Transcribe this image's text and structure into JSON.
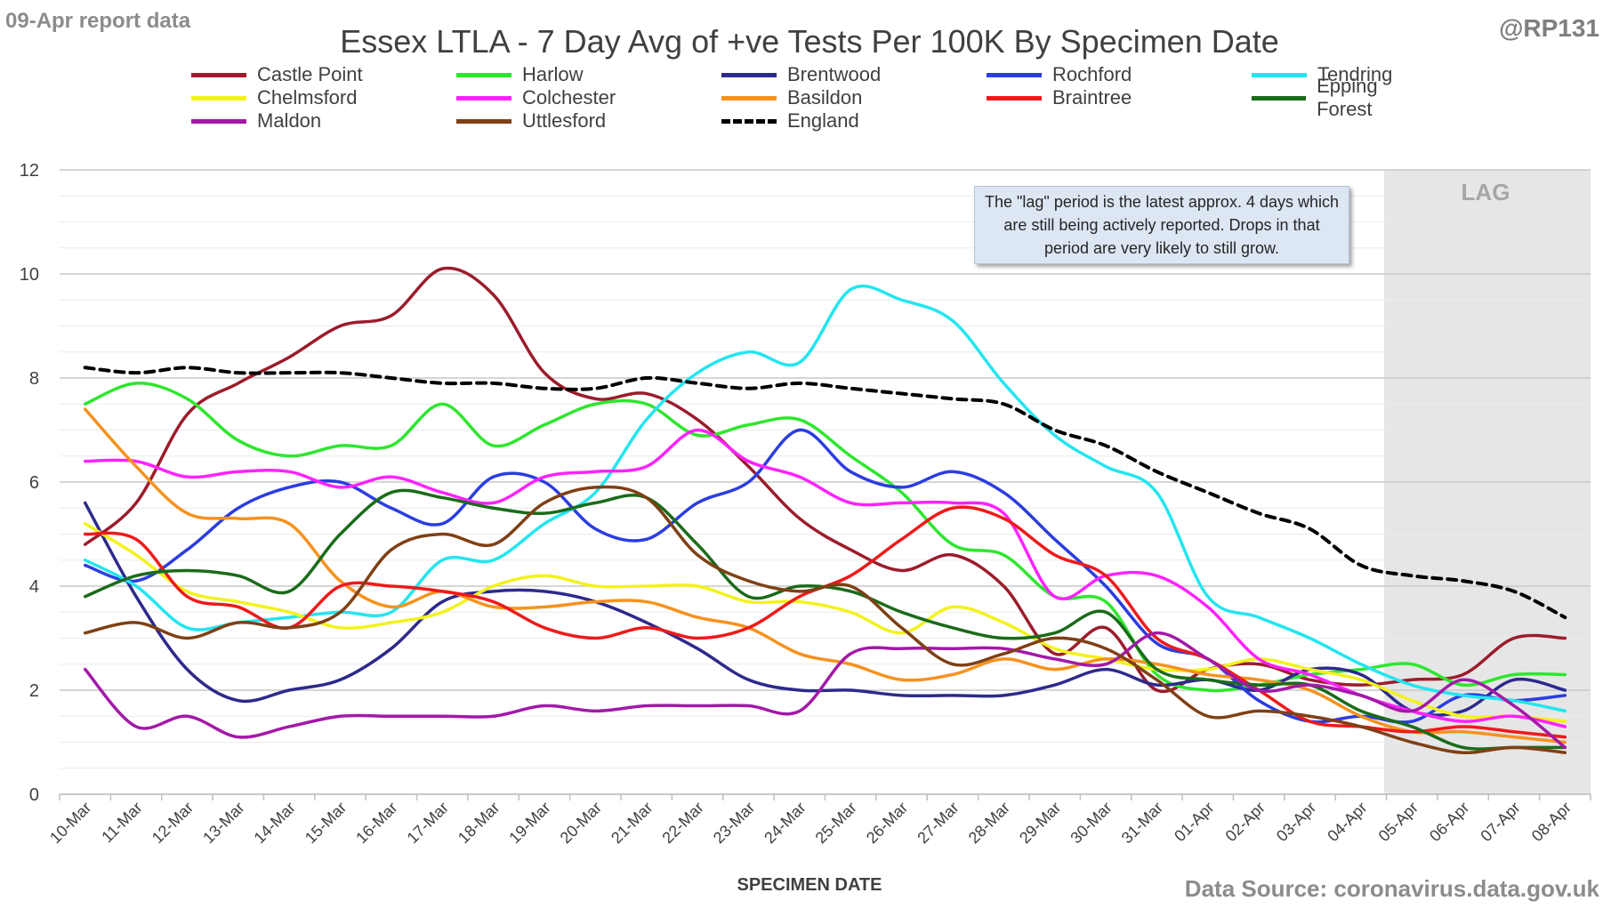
{
  "header": {
    "report_date": "09-Apr report data",
    "handle": "@RP131",
    "source": "Data Source: coronavirus.data.gov.uk"
  },
  "annotation": {
    "lag_label": "LAG",
    "lag_note": "The \"lag\" period is the latest approx. 4 days which are still being actively reported. Drops in that period are very likely to still grow."
  },
  "chart_data": {
    "type": "line",
    "title": "Essex LTLA - 7 Day Avg of +ve Tests Per 100K By Specimen Date",
    "xlabel": "SPECIMEN DATE",
    "ylabel": "",
    "ylim": [
      0,
      12
    ],
    "yticks": [
      0,
      2,
      4,
      6,
      8,
      10,
      12
    ],
    "grid": true,
    "legend_position": "top",
    "lag_region": [
      "05-Apr",
      "08-Apr"
    ],
    "categories": [
      "10-Mar",
      "11-Mar",
      "12-Mar",
      "13-Mar",
      "14-Mar",
      "15-Mar",
      "16-Mar",
      "17-Mar",
      "18-Mar",
      "19-Mar",
      "20-Mar",
      "21-Mar",
      "22-Mar",
      "23-Mar",
      "24-Mar",
      "25-Mar",
      "26-Mar",
      "27-Mar",
      "28-Mar",
      "29-Mar",
      "30-Mar",
      "31-Mar",
      "01-Apr",
      "02-Apr",
      "03-Apr",
      "04-Apr",
      "05-Apr",
      "06-Apr",
      "07-Apr",
      "08-Apr"
    ],
    "series": [
      {
        "name": "Castle Point",
        "color": "#9b1c2c",
        "dash": false,
        "values": [
          4.8,
          5.6,
          7.3,
          7.9,
          8.4,
          9.0,
          9.2,
          10.1,
          9.6,
          8.1,
          7.6,
          7.7,
          7.2,
          6.3,
          5.3,
          4.7,
          4.3,
          4.6,
          4.0,
          2.7,
          3.2,
          2.0,
          2.4,
          2.5,
          2.2,
          2.1,
          2.2,
          2.3,
          3.0,
          3.0
        ]
      },
      {
        "name": "Harlow",
        "color": "#2ee62e",
        "dash": false,
        "values": [
          7.5,
          7.9,
          7.6,
          6.8,
          6.5,
          6.7,
          6.7,
          7.5,
          6.7,
          7.1,
          7.5,
          7.5,
          6.9,
          7.1,
          7.2,
          6.5,
          5.8,
          4.8,
          4.6,
          3.8,
          3.7,
          2.3,
          2.0,
          2.1,
          2.3,
          2.4,
          2.5,
          2.1,
          2.3,
          2.3
        ]
      },
      {
        "name": "Brentwood",
        "color": "#2d2a8c",
        "dash": false,
        "values": [
          5.6,
          3.8,
          2.4,
          1.8,
          2.0,
          2.2,
          2.8,
          3.7,
          3.9,
          3.9,
          3.7,
          3.3,
          2.8,
          2.2,
          2.0,
          2.0,
          1.9,
          1.9,
          1.9,
          2.1,
          2.4,
          2.1,
          2.2,
          2.0,
          2.4,
          2.3,
          1.6,
          1.6,
          2.2,
          2.0
        ]
      },
      {
        "name": "Rochford",
        "color": "#2b3de0",
        "dash": false,
        "values": [
          4.4,
          4.1,
          4.7,
          5.5,
          5.9,
          6.0,
          5.5,
          5.2,
          6.1,
          6.0,
          5.1,
          4.9,
          5.6,
          6.0,
          7.0,
          6.2,
          5.9,
          6.2,
          5.8,
          4.9,
          4.0,
          2.9,
          2.6,
          1.8,
          1.4,
          1.5,
          1.4,
          1.9,
          1.8,
          1.9
        ]
      },
      {
        "name": "Tendring",
        "color": "#23e5f0",
        "dash": false,
        "values": [
          4.5,
          4.0,
          3.2,
          3.3,
          3.4,
          3.5,
          3.5,
          4.5,
          4.5,
          5.2,
          5.8,
          7.2,
          8.1,
          8.5,
          8.3,
          9.7,
          9.5,
          9.1,
          7.9,
          6.9,
          6.3,
          5.8,
          3.8,
          3.4,
          3.0,
          2.5,
          2.1,
          1.9,
          1.8,
          1.6
        ]
      },
      {
        "name": "Chelmsford",
        "color": "#f2f21b",
        "dash": false,
        "values": [
          5.2,
          4.6,
          3.9,
          3.7,
          3.5,
          3.2,
          3.3,
          3.5,
          4.0,
          4.2,
          4.0,
          4.0,
          4.0,
          3.7,
          3.7,
          3.5,
          3.1,
          3.6,
          3.3,
          2.8,
          2.6,
          2.4,
          2.4,
          2.6,
          2.4,
          2.2,
          1.8,
          1.5,
          1.5,
          1.4
        ]
      },
      {
        "name": "Colchester",
        "color": "#ff22ff",
        "dash": false,
        "values": [
          6.4,
          6.4,
          6.1,
          6.2,
          6.2,
          5.9,
          6.1,
          5.8,
          5.6,
          6.1,
          6.2,
          6.3,
          7.0,
          6.4,
          6.1,
          5.6,
          5.6,
          5.6,
          5.4,
          3.8,
          4.2,
          4.2,
          3.6,
          2.6,
          2.3,
          1.9,
          1.6,
          1.4,
          1.5,
          1.3
        ]
      },
      {
        "name": "Basildon",
        "color": "#f5921e",
        "dash": false,
        "values": [
          7.4,
          6.3,
          5.4,
          5.3,
          5.2,
          4.1,
          3.6,
          3.9,
          3.6,
          3.6,
          3.7,
          3.7,
          3.4,
          3.2,
          2.7,
          2.5,
          2.2,
          2.3,
          2.6,
          2.4,
          2.6,
          2.5,
          2.3,
          2.2,
          2.0,
          1.5,
          1.2,
          1.2,
          1.1,
          1.0
        ]
      },
      {
        "name": "Braintree",
        "color": "#ee1a1a",
        "dash": false,
        "values": [
          5.0,
          4.9,
          3.8,
          3.6,
          3.2,
          4.0,
          4.0,
          3.9,
          3.7,
          3.2,
          3.0,
          3.2,
          3.0,
          3.2,
          3.8,
          4.2,
          4.9,
          5.5,
          5.3,
          4.6,
          4.2,
          3.0,
          2.6,
          2.0,
          1.4,
          1.3,
          1.2,
          1.3,
          1.2,
          1.1
        ]
      },
      {
        "name": "Epping Forest",
        "color": "#1a6b1a",
        "dash": false,
        "values": [
          3.8,
          4.2,
          4.3,
          4.2,
          3.9,
          5.0,
          5.8,
          5.7,
          5.5,
          5.4,
          5.6,
          5.7,
          4.8,
          3.8,
          4.0,
          3.9,
          3.5,
          3.2,
          3.0,
          3.1,
          3.5,
          2.4,
          2.2,
          2.1,
          2.1,
          1.6,
          1.3,
          0.9,
          0.9,
          0.9
        ]
      },
      {
        "name": "Maldon",
        "color": "#a319a8",
        "dash": false,
        "values": [
          2.4,
          1.3,
          1.5,
          1.1,
          1.3,
          1.5,
          1.5,
          1.5,
          1.5,
          1.7,
          1.6,
          1.7,
          1.7,
          1.7,
          1.6,
          2.7,
          2.8,
          2.8,
          2.8,
          2.6,
          2.5,
          3.1,
          2.6,
          2.0,
          2.1,
          1.9,
          1.6,
          2.2,
          1.7,
          0.9
        ]
      },
      {
        "name": "Uttlesford",
        "color": "#7f4015",
        "dash": false,
        "values": [
          3.1,
          3.3,
          3.0,
          3.3,
          3.2,
          3.5,
          4.7,
          5.0,
          4.8,
          5.6,
          5.9,
          5.7,
          4.6,
          4.1,
          3.9,
          4.0,
          3.2,
          2.5,
          2.7,
          3.0,
          2.8,
          2.2,
          1.5,
          1.6,
          1.5,
          1.3,
          1.0,
          0.8,
          0.9,
          0.8
        ]
      },
      {
        "name": "England",
        "color": "#000000",
        "dash": true,
        "values": [
          8.2,
          8.1,
          8.2,
          8.1,
          8.1,
          8.1,
          8.0,
          7.9,
          7.9,
          7.8,
          7.8,
          8.0,
          7.9,
          7.8,
          7.9,
          7.8,
          7.7,
          7.6,
          7.5,
          7.0,
          6.7,
          6.2,
          5.8,
          5.4,
          5.1,
          4.4,
          4.2,
          4.1,
          3.9,
          3.4
        ]
      }
    ]
  }
}
